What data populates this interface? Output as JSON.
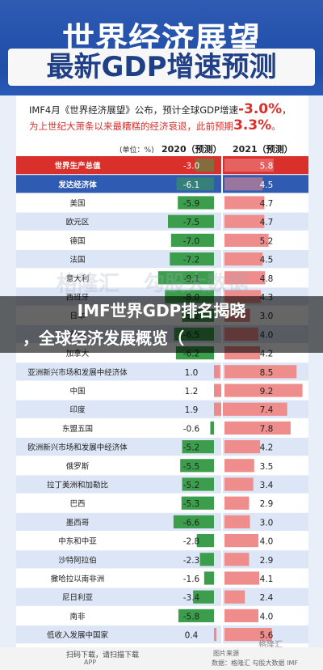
{
  "header": {
    "title_line1": "世界经济展望",
    "title_line2": "最新GDP增速预测"
  },
  "intro": {
    "line1_prefix": "IMF4月《世界经济展望》公布，预计全球GDP增速",
    "line1_value": "-3.0%",
    "line1_suffix": "，",
    "line2_prefix": "为上世纪大萧条以来最糟糕的经济衰退，此前预期",
    "line2_value": "3.3%",
    "line2_suffix": "。"
  },
  "unit_label": "(单位：%)",
  "columns": [
    "2020（预测）",
    "2021（预测）"
  ],
  "chart_data": {
    "type": "bar",
    "title": "世界经济展望 最新GDP增速预测",
    "unit": "(单位：%)",
    "series_names": [
      "2020（预测）",
      "2021（预测）"
    ],
    "categories": [
      "世界生产总值",
      "发达经济体",
      "美国",
      "欧元区",
      "德国",
      "法国",
      "意大利",
      "西班牙",
      "日本",
      "英国",
      "加拿大",
      "亚洲新兴市场和发展中经济体",
      "中国",
      "印度",
      "东盟五国",
      "欧洲新兴市场和发展中经济体",
      "俄罗斯",
      "拉丁美洲和加勒比",
      "巴西",
      "墨西哥",
      "中东和中亚",
      "沙特阿拉伯",
      "撒哈拉以南非洲",
      "尼日利亚",
      "南非",
      "低收入发展中国家"
    ],
    "values_2020": [
      -3.0,
      -6.1,
      -5.9,
      -7.5,
      -7.0,
      -7.2,
      -9.1,
      -8.0,
      -5.2,
      -6.5,
      -6.2,
      1.0,
      1.2,
      1.9,
      -0.6,
      -5.2,
      -5.5,
      -5.2,
      -5.3,
      -6.6,
      -2.8,
      -2.3,
      -1.6,
      -3.4,
      -5.8,
      0.4
    ],
    "values_2021": [
      5.8,
      4.5,
      4.7,
      4.7,
      5.2,
      4.5,
      4.8,
      4.3,
      3.0,
      4.0,
      4.2,
      8.5,
      9.2,
      7.4,
      7.8,
      4.2,
      3.5,
      3.4,
      2.9,
      3.0,
      4.0,
      2.9,
      4.1,
      2.4,
      4.0,
      5.6
    ],
    "highlight_rows": [
      "世界生产总值",
      "发达经济体"
    ],
    "colors": {
      "neg_bar": "#3c9e4c",
      "pos_bar_2020": "#f08a8a",
      "bar_2021": "#ef8c8c",
      "world_row": "#d9302b",
      "adv_row": "#2f5bb3",
      "stripe_blue": "#dce6f6",
      "stripe_white": "#ffffff"
    }
  },
  "footer": {
    "text1": "扫码下载，请扫描下载",
    "text2": "APP",
    "text3": "图片来源",
    "text4": "数据：格隆汇 勾股大数据 IMF"
  },
  "watermarks": [
    "格隆汇",
    "勾股大数据",
    "格隆汇"
  ],
  "banner": {
    "line1": "IMF世界GDP排名揭晓",
    "line2": "，全球经济发展概览（"
  }
}
